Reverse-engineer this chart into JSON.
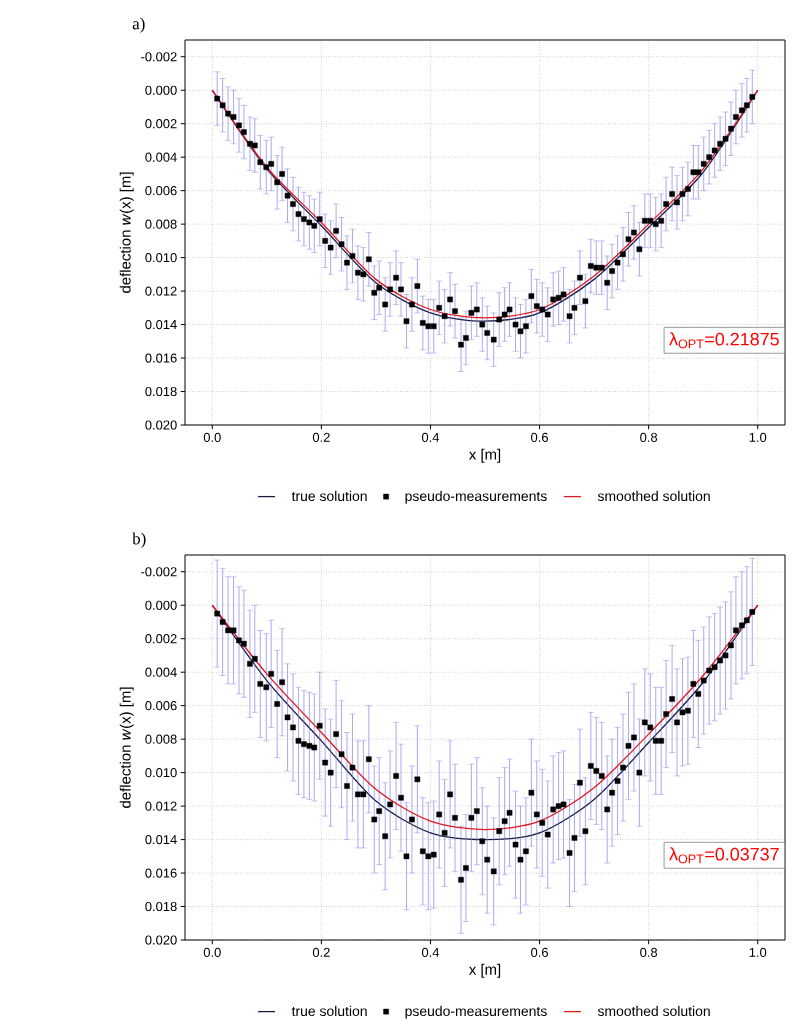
{
  "chart_data": [
    {
      "type": "scatter",
      "title": "a)",
      "xlabel": "x [m]",
      "ylabel": "deflection *w*(x) [m]",
      "xlim": [
        -0.05,
        1.05
      ],
      "ylim": [
        0.02,
        -0.003
      ],
      "xticks": [
        {
          "value": 0,
          "label": "0.0"
        },
        {
          "value": 0.2,
          "label": "0.2"
        },
        {
          "value": 0.4,
          "label": "0.4"
        },
        {
          "value": 0.6,
          "label": "0.6"
        },
        {
          "value": 0.8,
          "label": "0.8"
        },
        {
          "value": 1.0,
          "label": "1.0"
        }
      ],
      "yticks": [
        {
          "value": -0.002,
          "label": "-0.002"
        },
        {
          "value": 0,
          "label": "0.000"
        },
        {
          "value": 0.002,
          "label": "0.002"
        },
        {
          "value": 0.004,
          "label": "0.004"
        },
        {
          "value": 0.006,
          "label": "0.006"
        },
        {
          "value": 0.008,
          "label": "0.008"
        },
        {
          "value": 0.01,
          "label": "0.010"
        },
        {
          "value": 0.012,
          "label": "0.012"
        },
        {
          "value": 0.014,
          "label": "0.014"
        },
        {
          "value": 0.016,
          "label": "0.016"
        },
        {
          "value": 0.018,
          "label": "0.018"
        },
        {
          "value": 0.02,
          "label": "0.020"
        }
      ],
      "grid": true,
      "legend": "bottom",
      "annotations": [
        "λ$_{OPT}$=0.21875"
      ],
      "series": [
        {
          "name": "true solution",
          "type": "line",
          "color": "#1a1a40",
          "marker": "none",
          "x": [
            0,
            0.1,
            0.2,
            0.3,
            0.4,
            0.5,
            0.6,
            0.7,
            0.8,
            0.9,
            1.0
          ],
          "values": [
            0,
            0.0047,
            0.0081,
            0.0115,
            0.0133,
            0.0138,
            0.0133,
            0.0113,
            0.0082,
            0.0049,
            0
          ]
        },
        {
          "name": "pseudo-measurements",
          "color": "#000000",
          "marker": "square",
          "x": [
            0.009,
            0.019,
            0.029,
            0.039,
            0.049,
            0.058,
            0.069,
            0.078,
            0.088,
            0.099,
            0.108,
            0.119,
            0.128,
            0.138,
            0.148,
            0.158,
            0.168,
            0.178,
            0.187,
            0.197,
            0.207,
            0.217,
            0.227,
            0.237,
            0.247,
            0.257,
            0.267,
            0.277,
            0.287,
            0.297,
            0.306,
            0.317,
            0.326,
            0.337,
            0.346,
            0.356,
            0.366,
            0.376,
            0.386,
            0.396,
            0.406,
            0.416,
            0.426,
            0.436,
            0.445,
            0.456,
            0.465,
            0.475,
            0.485,
            0.495,
            0.504,
            0.516,
            0.526,
            0.536,
            0.545,
            0.556,
            0.565,
            0.575,
            0.585,
            0.595,
            0.605,
            0.615,
            0.625,
            0.635,
            0.644,
            0.655,
            0.664,
            0.674,
            0.684,
            0.694,
            0.704,
            0.714,
            0.724,
            0.733,
            0.743,
            0.753,
            0.763,
            0.773,
            0.783,
            0.793,
            0.803,
            0.813,
            0.823,
            0.832,
            0.843,
            0.852,
            0.862,
            0.872,
            0.882,
            0.891,
            0.901,
            0.911,
            0.921,
            0.931,
            0.941,
            0.951,
            0.96,
            0.971,
            0.98,
            0.99
          ],
          "values": [
            0.0005,
            0.0009,
            0.0014,
            0.0016,
            0.0021,
            0.0025,
            0.0032,
            0.0033,
            0.0043,
            0.0046,
            0.0044,
            0.0055,
            0.005,
            0.0063,
            0.0068,
            0.0074,
            0.0077,
            0.0079,
            0.0081,
            0.0077,
            0.009,
            0.0094,
            0.0084,
            0.0092,
            0.0103,
            0.0099,
            0.0109,
            0.011,
            0.0101,
            0.0121,
            0.0118,
            0.0128,
            0.0119,
            0.0112,
            0.0119,
            0.0138,
            0.0128,
            0.0117,
            0.0139,
            0.0141,
            0.0141,
            0.013,
            0.0135,
            0.0125,
            0.0132,
            0.0152,
            0.0148,
            0.0133,
            0.0131,
            0.014,
            0.0145,
            0.0149,
            0.0137,
            0.0134,
            0.0131,
            0.014,
            0.0144,
            0.0141,
            0.0123,
            0.0129,
            0.0131,
            0.0134,
            0.0125,
            0.0124,
            0.0122,
            0.0135,
            0.013,
            0.0112,
            0.0126,
            0.0105,
            0.0106,
            0.0106,
            0.0115,
            0.0108,
            0.0103,
            0.0098,
            0.0089,
            0.0085,
            0.0095,
            0.0078,
            0.0078,
            0.008,
            0.0078,
            0.0068,
            0.0062,
            0.0067,
            0.0062,
            0.0059,
            0.0049,
            0.0049,
            0.0044,
            0.004,
            0.0036,
            0.0032,
            0.0029,
            0.0023,
            0.0016,
            0.0012,
            0.0009,
            0.0004
          ],
          "errors": [
            0.0016,
            0.0016,
            0.0016,
            0.0016,
            0.0016,
            0.0016,
            0.0016,
            0.0016,
            0.0016,
            0.0016,
            0.0016,
            0.0016,
            0.0016,
            0.0016,
            0.0016,
            0.0016,
            0.0016,
            0.0016,
            0.0016,
            0.0016,
            0.0016,
            0.0016,
            0.0016,
            0.0016,
            0.0016,
            0.0016,
            0.0016,
            0.0016,
            0.0016,
            0.0016,
            0.0016,
            0.0016,
            0.0016,
            0.0016,
            0.0016,
            0.0016,
            0.0016,
            0.0016,
            0.0016,
            0.0016,
            0.0016,
            0.0016,
            0.0016,
            0.0016,
            0.0016,
            0.0016,
            0.0016,
            0.0016,
            0.0016,
            0.0016,
            0.0016,
            0.0016,
            0.0016,
            0.0016,
            0.0016,
            0.0016,
            0.0016,
            0.0016,
            0.0016,
            0.0016,
            0.0016,
            0.0016,
            0.0016,
            0.0016,
            0.0016,
            0.0016,
            0.0016,
            0.0016,
            0.0016,
            0.0016,
            0.0016,
            0.0016,
            0.0016,
            0.0016,
            0.0016,
            0.0016,
            0.0016,
            0.0016,
            0.0016,
            0.0016,
            0.0016,
            0.0016,
            0.0016,
            0.0016,
            0.0016,
            0.0016,
            0.0016,
            0.0016,
            0.0016,
            0.0016,
            0.0016,
            0.0016,
            0.0016,
            0.0016,
            0.0016,
            0.0016,
            0.0016,
            0.0016,
            0.0016,
            0.0016
          ]
        },
        {
          "name": "smoothed solution",
          "type": "line",
          "color": "#e0191f",
          "marker": "none",
          "x": [
            0,
            0.1,
            0.2,
            0.3,
            0.4,
            0.5,
            0.6,
            0.7,
            0.8,
            0.9,
            1.0
          ],
          "values": [
            0,
            0.0046,
            0.0079,
            0.0113,
            0.0131,
            0.0136,
            0.0131,
            0.0111,
            0.008,
            0.0047,
            0
          ]
        }
      ]
    },
    {
      "type": "scatter",
      "title": "b)",
      "xlabel": "x [m]",
      "ylabel": "deflection *w*(x) [m]",
      "xlim": [
        -0.05,
        1.05
      ],
      "ylim": [
        0.02,
        -0.003
      ],
      "xticks": [
        {
          "value": 0,
          "label": "0.0"
        },
        {
          "value": 0.2,
          "label": "0.2"
        },
        {
          "value": 0.4,
          "label": "0.4"
        },
        {
          "value": 0.6,
          "label": "0.6"
        },
        {
          "value": 0.8,
          "label": "0.8"
        },
        {
          "value": 1.0,
          "label": "1.0"
        }
      ],
      "yticks": [
        {
          "value": -0.002,
          "label": "-0.002"
        },
        {
          "value": 0,
          "label": "0.000"
        },
        {
          "value": 0.002,
          "label": "0.002"
        },
        {
          "value": 0.004,
          "label": "0.004"
        },
        {
          "value": 0.006,
          "label": "0.006"
        },
        {
          "value": 0.008,
          "label": "0.008"
        },
        {
          "value": 0.01,
          "label": "0.010"
        },
        {
          "value": 0.012,
          "label": "0.012"
        },
        {
          "value": 0.014,
          "label": "0.014"
        },
        {
          "value": 0.016,
          "label": "0.016"
        },
        {
          "value": 0.018,
          "label": "0.018"
        },
        {
          "value": 0.02,
          "label": "0.020"
        }
      ],
      "grid": true,
      "legend": "bottom",
      "annotations": [
        "λ$_{OPT}$=0.03737"
      ],
      "series": [
        {
          "name": "true solution",
          "type": "line",
          "color": "#1a1a40",
          "marker": "none",
          "x": [
            0,
            0.1,
            0.2,
            0.3,
            0.4,
            0.5,
            0.6,
            0.7,
            0.8,
            0.9,
            1.0
          ],
          "values": [
            0,
            0.0045,
            0.0081,
            0.0117,
            0.0136,
            0.014,
            0.0136,
            0.0116,
            0.0082,
            0.0046,
            0
          ]
        },
        {
          "name": "pseudo-measurements",
          "color": "#000000",
          "marker": "square",
          "x": [
            0.009,
            0.019,
            0.029,
            0.039,
            0.049,
            0.058,
            0.069,
            0.078,
            0.088,
            0.099,
            0.108,
            0.119,
            0.128,
            0.138,
            0.148,
            0.158,
            0.168,
            0.178,
            0.187,
            0.197,
            0.207,
            0.217,
            0.227,
            0.237,
            0.247,
            0.257,
            0.267,
            0.277,
            0.287,
            0.297,
            0.306,
            0.317,
            0.326,
            0.337,
            0.346,
            0.356,
            0.366,
            0.376,
            0.386,
            0.396,
            0.406,
            0.416,
            0.426,
            0.436,
            0.445,
            0.456,
            0.465,
            0.475,
            0.485,
            0.495,
            0.504,
            0.516,
            0.526,
            0.536,
            0.545,
            0.556,
            0.565,
            0.575,
            0.585,
            0.595,
            0.605,
            0.615,
            0.625,
            0.635,
            0.644,
            0.655,
            0.664,
            0.674,
            0.684,
            0.694,
            0.704,
            0.714,
            0.724,
            0.733,
            0.743,
            0.753,
            0.763,
            0.773,
            0.783,
            0.793,
            0.803,
            0.813,
            0.823,
            0.832,
            0.843,
            0.852,
            0.862,
            0.872,
            0.882,
            0.891,
            0.901,
            0.911,
            0.921,
            0.931,
            0.941,
            0.951,
            0.96,
            0.971,
            0.98,
            0.99
          ],
          "values": [
            0.0005,
            0.001,
            0.0015,
            0.0015,
            0.0021,
            0.0023,
            0.0035,
            0.0032,
            0.0047,
            0.0049,
            0.0041,
            0.0059,
            0.0046,
            0.0067,
            0.0073,
            0.0081,
            0.0083,
            0.0084,
            0.0085,
            0.0072,
            0.0094,
            0.01,
            0.0077,
            0.0089,
            0.0108,
            0.0097,
            0.0113,
            0.0113,
            0.0092,
            0.0128,
            0.0123,
            0.0138,
            0.0119,
            0.0102,
            0.0115,
            0.015,
            0.0128,
            0.0104,
            0.0147,
            0.015,
            0.0149,
            0.0125,
            0.0136,
            0.0113,
            0.0127,
            0.0164,
            0.0157,
            0.0127,
            0.0123,
            0.0141,
            0.0152,
            0.0159,
            0.0135,
            0.0129,
            0.0124,
            0.0143,
            0.0152,
            0.0147,
            0.0112,
            0.0125,
            0.013,
            0.0137,
            0.0122,
            0.012,
            0.0119,
            0.0148,
            0.0139,
            0.0106,
            0.0135,
            0.0096,
            0.0099,
            0.0102,
            0.0122,
            0.0112,
            0.0105,
            0.0097,
            0.0084,
            0.0079,
            0.01,
            0.007,
            0.0073,
            0.0081,
            0.0081,
            0.0065,
            0.0056,
            0.007,
            0.0064,
            0.0063,
            0.0047,
            0.0053,
            0.0045,
            0.0039,
            0.0037,
            0.0033,
            0.003,
            0.0024,
            0.0015,
            0.0012,
            0.0009,
            0.0004
          ],
          "errors": [
            0.0032,
            0.0032,
            0.0032,
            0.0032,
            0.0032,
            0.0032,
            0.0032,
            0.0032,
            0.0032,
            0.0032,
            0.0032,
            0.0032,
            0.0032,
            0.0032,
            0.0032,
            0.0032,
            0.0032,
            0.0032,
            0.0032,
            0.0032,
            0.0032,
            0.0032,
            0.0032,
            0.0032,
            0.0032,
            0.0032,
            0.0032,
            0.0032,
            0.0032,
            0.0032,
            0.0032,
            0.0032,
            0.0032,
            0.0032,
            0.0032,
            0.0032,
            0.0032,
            0.0032,
            0.0032,
            0.0032,
            0.0032,
            0.0032,
            0.0032,
            0.0032,
            0.0032,
            0.0032,
            0.0032,
            0.0032,
            0.0032,
            0.0032,
            0.0032,
            0.0032,
            0.0032,
            0.0032,
            0.0032,
            0.0032,
            0.0032,
            0.0032,
            0.0032,
            0.0032,
            0.0032,
            0.0032,
            0.0032,
            0.0032,
            0.0032,
            0.0032,
            0.0032,
            0.0032,
            0.0032,
            0.0032,
            0.0032,
            0.0032,
            0.0032,
            0.0032,
            0.0032,
            0.0032,
            0.0032,
            0.0032,
            0.0032,
            0.0032,
            0.0032,
            0.0032,
            0.0032,
            0.0032,
            0.0032,
            0.0032,
            0.0032,
            0.0032,
            0.0032,
            0.0032,
            0.0032,
            0.0032,
            0.0032,
            0.0032,
            0.0032,
            0.0032,
            0.0032,
            0.0032,
            0.0032,
            0.0032
          ]
        },
        {
          "name": "smoothed solution",
          "type": "line",
          "color": "#e0191f",
          "marker": "none",
          "x": [
            0,
            0.1,
            0.2,
            0.3,
            0.4,
            0.5,
            0.6,
            0.7,
            0.8,
            0.9,
            1.0
          ],
          "values": [
            0,
            0.0041,
            0.0076,
            0.011,
            0.0129,
            0.0134,
            0.0129,
            0.0109,
            0.0077,
            0.0042,
            0
          ]
        }
      ]
    }
  ]
}
